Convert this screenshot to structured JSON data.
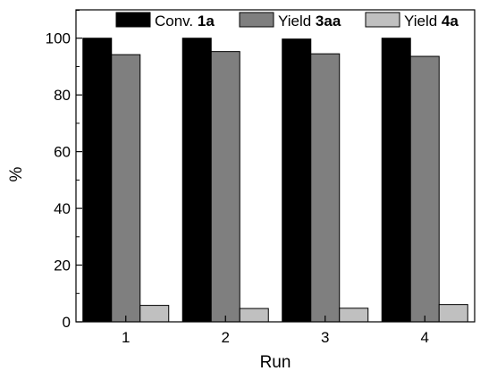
{
  "chart_data": {
    "type": "bar",
    "categories": [
      "1",
      "2",
      "3",
      "4"
    ],
    "series": [
      {
        "name": "Conv. ",
        "name_bold": "1a",
        "values": [
          100,
          100,
          99.7,
          100
        ],
        "color": "#000000"
      },
      {
        "name": "Yield ",
        "name_bold": "3aa",
        "values": [
          94.2,
          95.3,
          94.5,
          93.6
        ],
        "color": "#7f7f7f"
      },
      {
        "name": "Yield ",
        "name_bold": "4a",
        "values": [
          5.8,
          4.7,
          4.8,
          6.1
        ],
        "color": "#c0c0c0"
      }
    ],
    "title": "",
    "xlabel": "Run",
    "ylabel": "%",
    "ylim": [
      0,
      110
    ],
    "yticks": [
      "0",
      "20",
      "40",
      "60",
      "80",
      "100"
    ],
    "legend_position": "top",
    "grid": false
  }
}
